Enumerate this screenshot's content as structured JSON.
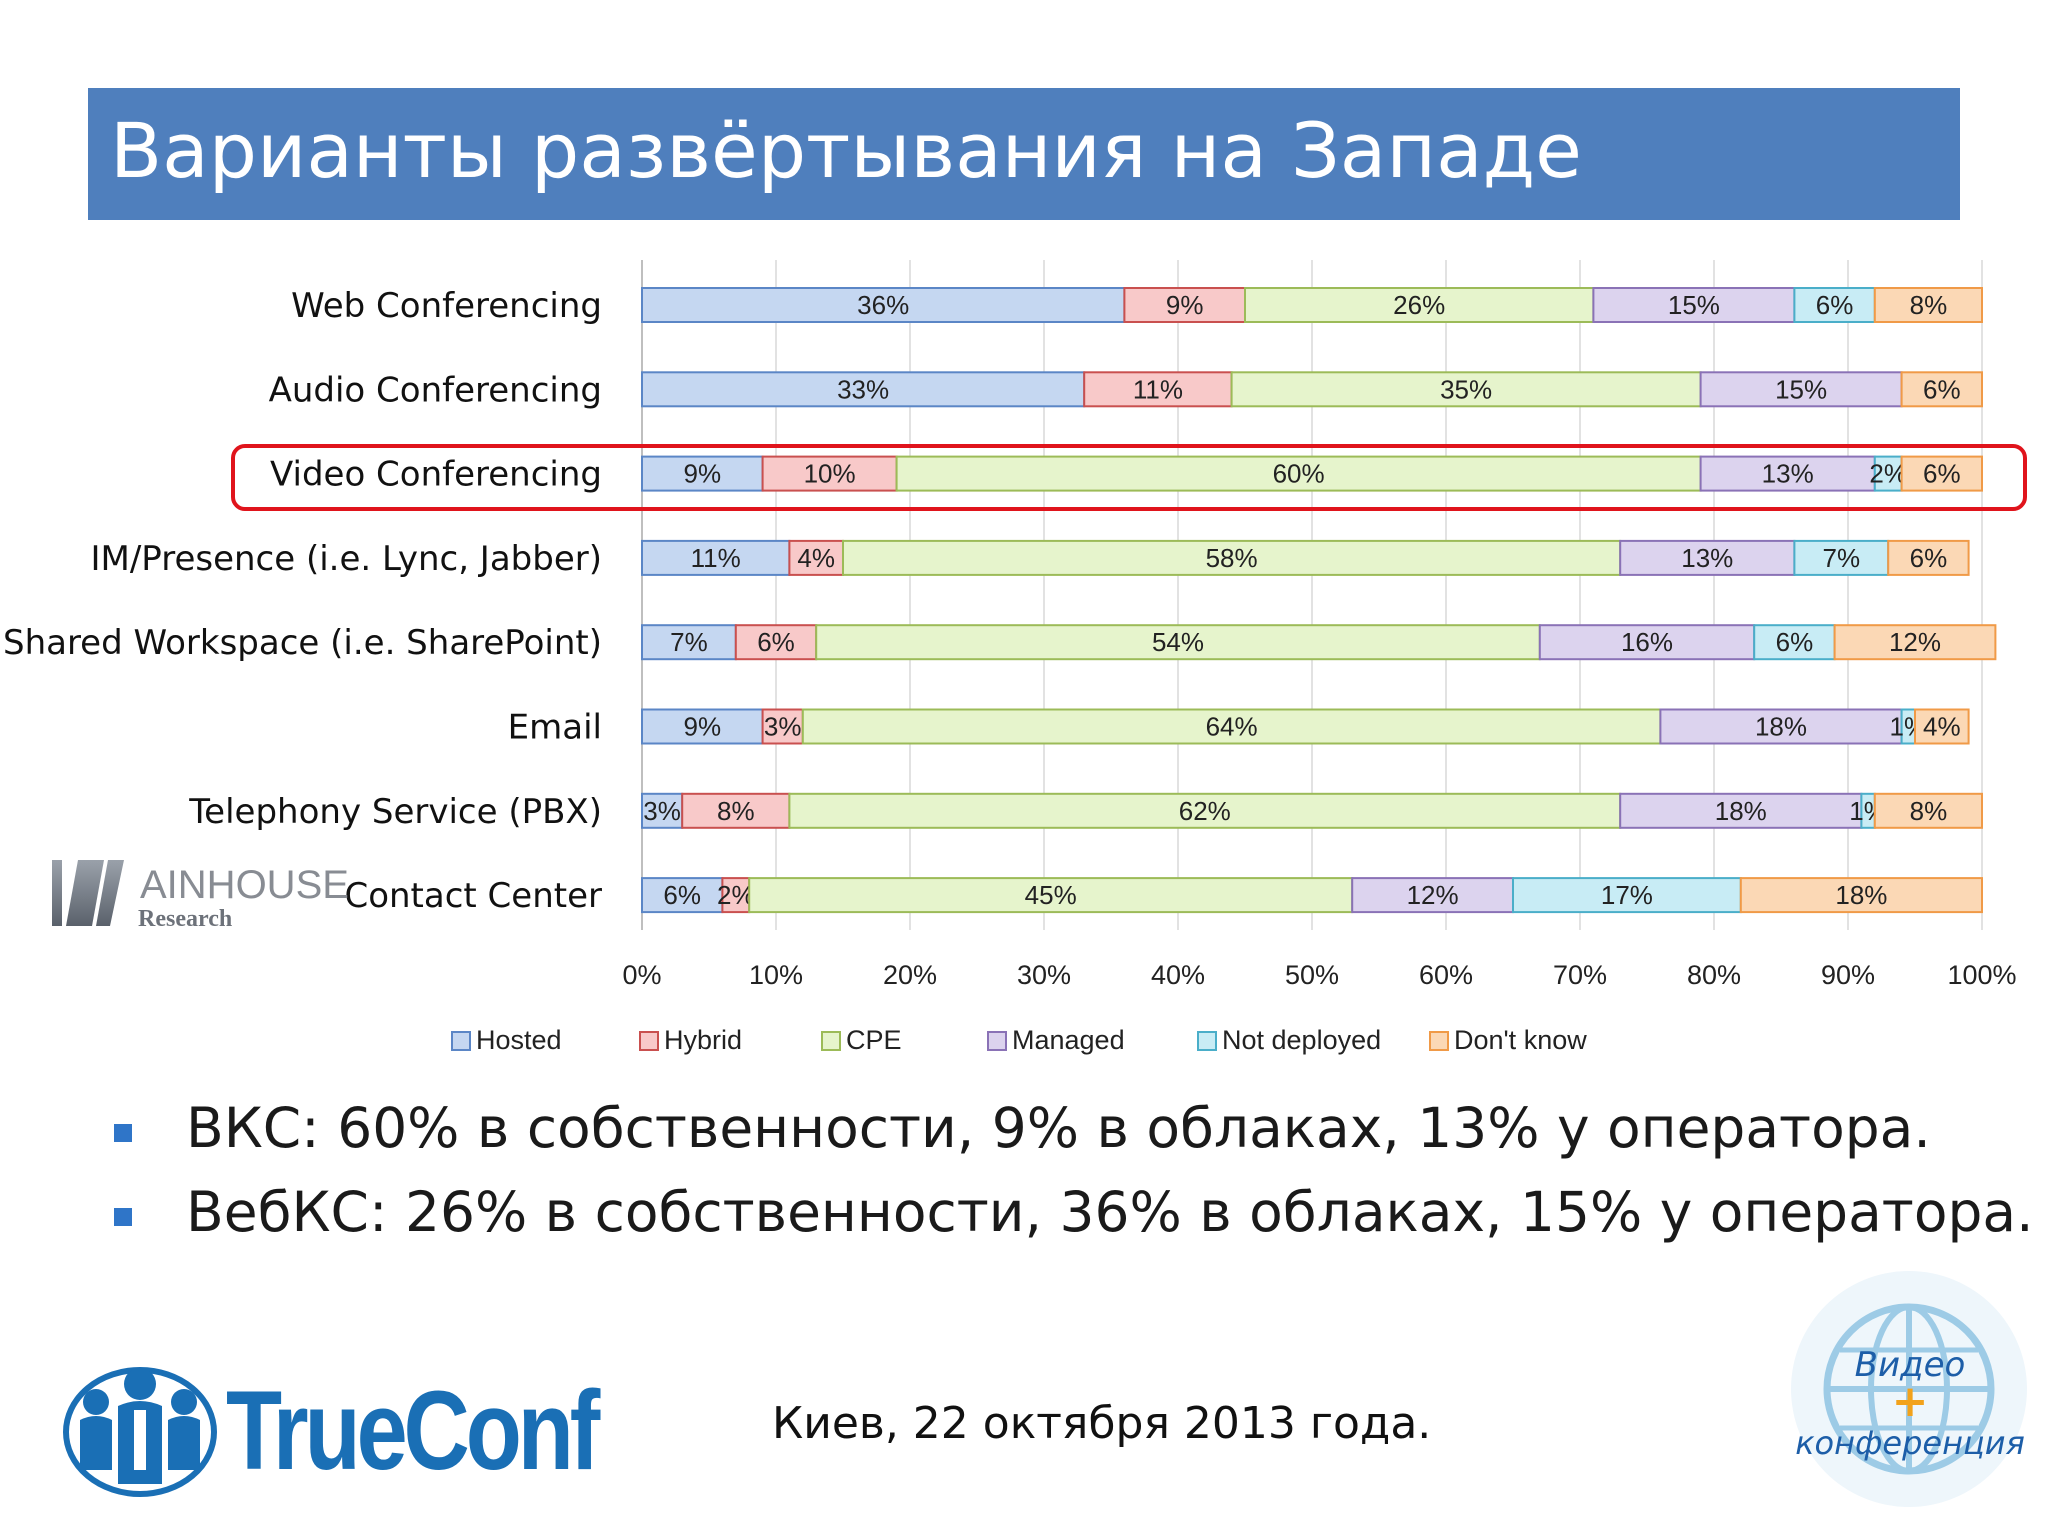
{
  "slide": {
    "title": "Варианты развёртывания на Западе",
    "bullets": [
      "ВКС: 60%  в собственности, 9% в облаках, 13% у оператора.",
      "ВебКС: 26% в собственности, 36% в облаках, 15% у оператора."
    ],
    "footer_date": "Киев, 22 октября 2013 года.",
    "logos": {
      "trueconf": "TrueConf",
      "wainhouse_line1": "AINHOUSE",
      "wainhouse_line2": "Research",
      "video_conf_line1": "Видео",
      "video_conf_plus": "+",
      "video_conf_line2": "конференция"
    }
  },
  "colors": {
    "title_bar": "#4f7fbd",
    "highlight_box": "#e0141c",
    "bullet": "#2f75c8",
    "trueconf_blue": "#1a6fb5"
  },
  "chart_data": {
    "type": "bar",
    "orientation": "horizontal",
    "stacked": "percent",
    "categories": [
      "Web Conferencing",
      "Audio Conferencing",
      "Video Conferencing",
      "IM/Presence (i.e. Lync, Jabber)",
      "Shared Workspace (i.e. SharePoint)",
      "Email",
      "Telephony Service (PBX)",
      "Contact Center"
    ],
    "highlighted_category": "Video Conferencing",
    "series": [
      {
        "name": "Hosted",
        "color": "#c5d7f1",
        "border": "#5b86c6",
        "values": [
          36,
          33,
          9,
          11,
          7,
          9,
          3,
          6
        ]
      },
      {
        "name": "Hybrid",
        "color": "#f8c9c9",
        "border": "#c9504f",
        "values": [
          9,
          11,
          10,
          4,
          6,
          3,
          8,
          2
        ]
      },
      {
        "name": "CPE",
        "color": "#e6f4cc",
        "border": "#9cbb58",
        "values": [
          26,
          35,
          60,
          58,
          54,
          64,
          62,
          45
        ]
      },
      {
        "name": "Managed",
        "color": "#dcd3ee",
        "border": "#8a72b6",
        "values": [
          15,
          15,
          13,
          13,
          16,
          18,
          18,
          12
        ]
      },
      {
        "name": "Not deployed",
        "color": "#c8ecf5",
        "border": "#4aaec9",
        "values": [
          6,
          0,
          2,
          7,
          6,
          1,
          1,
          17
        ]
      },
      {
        "name": "Don't know",
        "color": "#fbd8b5",
        "border": "#f09a47",
        "values": [
          8,
          6,
          6,
          6,
          12,
          4,
          8,
          18
        ]
      }
    ],
    "x_ticks": [
      "0%",
      "10%",
      "20%",
      "30%",
      "40%",
      "50%",
      "60%",
      "70%",
      "80%",
      "90%",
      "100%"
    ],
    "xlim": [
      0,
      100
    ],
    "legend_position": "bottom",
    "grid": true
  }
}
